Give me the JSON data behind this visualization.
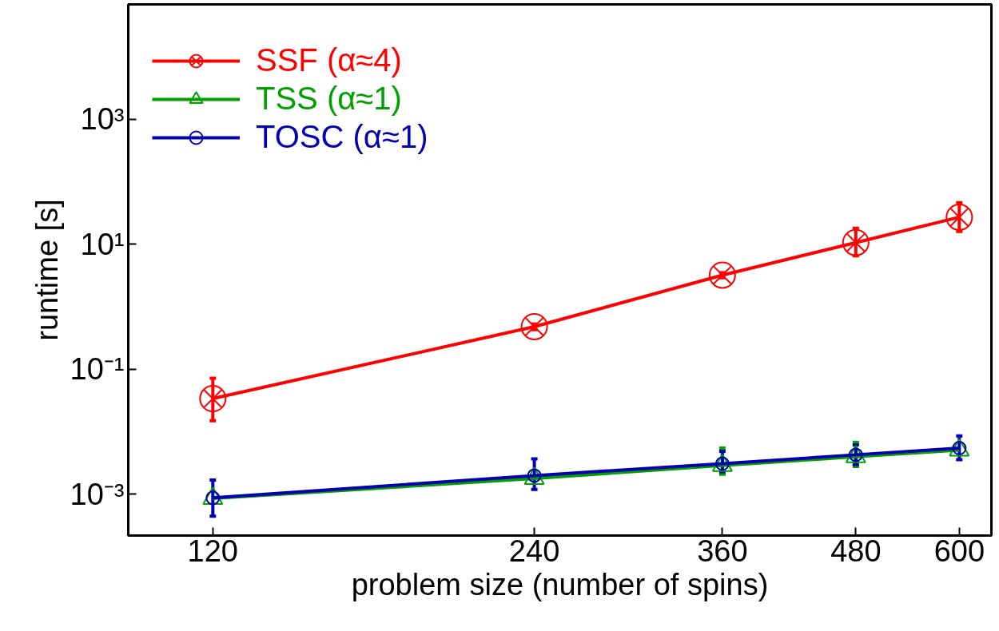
{
  "chart_data": {
    "type": "line",
    "xlabel": "problem size (number of spins)",
    "ylabel": "runtime [s]",
    "log": "xy",
    "x": [
      120,
      240,
      360,
      480,
      600
    ],
    "xlim": [
      100,
      643
    ],
    "xticks": [
      120,
      240,
      360,
      480,
      600
    ],
    "ylim": [
      0.00022,
      68000
    ],
    "yticks": [
      {
        "value": 0.001,
        "label": "10⁻³"
      },
      {
        "value": 0.1,
        "label": "10⁻¹"
      },
      {
        "value": 10,
        "label": "10¹"
      },
      {
        "value": 1000,
        "label": "10³"
      }
    ],
    "grid": false,
    "legend": "top left",
    "series": [
      {
        "name": "SSF (α≈4)",
        "color": "#ff0000",
        "marker": "cross",
        "values": [
          0.034,
          0.48,
          3.2,
          10.6,
          27
        ],
        "errors": [
          [
            0.015,
            0.072
          ],
          [
            0.43,
            0.53
          ],
          [
            2.9,
            3.5
          ],
          [
            6.5,
            18
          ],
          [
            16,
            46
          ]
        ]
      },
      {
        "name": "TSS (α≈1)",
        "color": "#00a000",
        "marker": "triangle",
        "values": [
          0.00086,
          0.0018,
          0.0029,
          0.004,
          0.0051
        ],
        "errors": [
          null,
          null,
          [
            0.0021,
            0.0055
          ],
          [
            0.0028,
            0.0068
          ],
          null
        ]
      },
      {
        "name": "TOSC (α≈1)",
        "color": "#0000b0",
        "marker": "circle",
        "values": [
          0.00088,
          0.002,
          0.0031,
          0.0043,
          0.0055
        ],
        "errors": [
          [
            0.00045,
            0.0017
          ],
          [
            0.0012,
            0.0037
          ],
          [
            0.0023,
            0.0049
          ],
          [
            0.003,
            0.0062
          ],
          [
            0.0036,
            0.0086
          ]
        ]
      }
    ]
  }
}
